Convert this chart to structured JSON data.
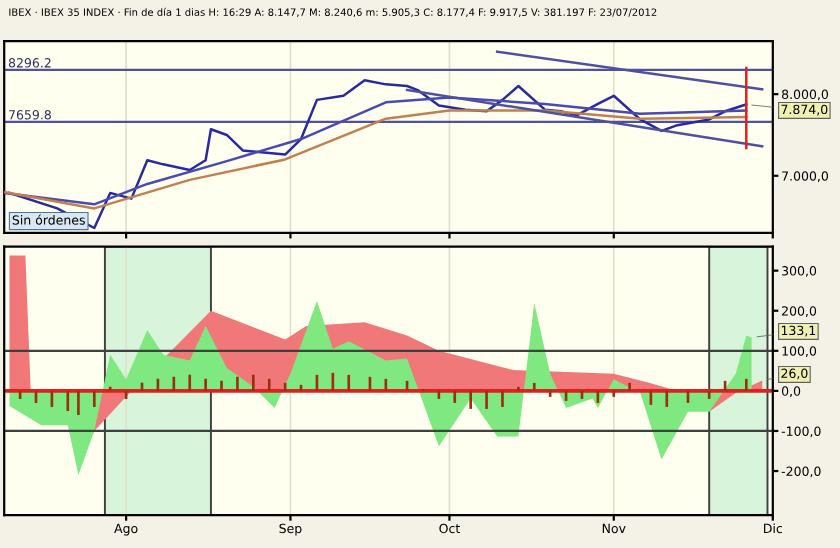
{
  "chart_data": [
    {
      "type": "line",
      "title": "IBEX · IBEX 35 INDEX · Fin de día 1 dias H: 16:29 A: 8.147,7 M: 8.240,6 m: 5.905,3 C: 8.177,4 F: 9.917,5 V: 381.197 F: 23/07/2012",
      "xlim": [
        "2012-07-09",
        "2012-12-01"
      ],
      "ylim": [
        6300,
        8650
      ],
      "xticks": [
        {
          "value": "2012-08-01",
          "label": null
        },
        {
          "value": "2012-09-01",
          "label": null
        },
        {
          "value": "2012-10-01",
          "label": null
        },
        {
          "value": "2012-11-01",
          "label": null
        },
        {
          "value": "2012-12-01",
          "label": null
        }
      ],
      "yticks": [
        {
          "value": 8000,
          "label": "8.000,0"
        },
        {
          "value": 7000,
          "label": "7.000,0"
        }
      ],
      "tick_labels": "y",
      "grid": "x",
      "ref_lines": [
        {
          "axis": "y",
          "value": 8296.2,
          "label": "8296.2",
          "color": "#5050a0"
        },
        {
          "axis": "y",
          "value": 7659.8,
          "label": "7659.8",
          "color": "#5050a0"
        }
      ],
      "annotations": [
        {
          "text": "7.874,0",
          "x": "2012-11-26",
          "y": 7874
        },
        "Sin órdenes"
      ],
      "series": [
        {
          "color": "#2a2aa0",
          "x": [
            "2012-07-10",
            "2012-07-19",
            "2012-07-26",
            "2012-07-29",
            "2012-08-02",
            "2012-08-05",
            "2012-08-08",
            "2012-08-13",
            "2012-08-16",
            "2012-08-17",
            "2012-08-20",
            "2012-08-23",
            "2012-08-26",
            "2012-08-31",
            "2012-09-03",
            "2012-09-06",
            "2012-09-11",
            "2012-09-15",
            "2012-09-19",
            "2012-09-23",
            "2012-09-25",
            "2012-09-29",
            "2012-10-04",
            "2012-10-08",
            "2012-10-11",
            "2012-10-14",
            "2012-10-19",
            "2012-10-22",
            "2012-10-25",
            "2012-10-29",
            "2012-11-01",
            "2012-11-06",
            "2012-11-10",
            "2012-11-13",
            "2012-11-19",
            "2012-11-22",
            "2012-11-26"
          ],
          "values": [
            6790,
            6600,
            6360,
            6790,
            6720,
            7190,
            7140,
            7070,
            7190,
            7570,
            7500,
            7310,
            7290,
            7260,
            7450,
            7930,
            7980,
            8170,
            8120,
            8100,
            8050,
            7860,
            7810,
            7790,
            7930,
            8100,
            7810,
            7790,
            7740,
            7880,
            7980,
            7690,
            7550,
            7620,
            7690,
            7790,
            7874
          ]
        },
        {
          "color": "#4a4ab0",
          "x": [
            "2012-07-09",
            "2012-07-26",
            "2012-08-05",
            "2012-08-20",
            "2012-09-03",
            "2012-09-19",
            "2012-10-01",
            "2012-10-19",
            "2012-11-06",
            "2012-11-26"
          ],
          "values": [
            6790,
            6650,
            6900,
            7180,
            7450,
            7900,
            7960,
            7880,
            7760,
            7800
          ]
        },
        {
          "color": "#c08050",
          "x": [
            "2012-07-09",
            "2012-07-26",
            "2012-08-13",
            "2012-08-31",
            "2012-09-19",
            "2012-10-01",
            "2012-10-19",
            "2012-11-06",
            "2012-11-26"
          ],
          "values": [
            6800,
            6600,
            6950,
            7200,
            7700,
            7800,
            7800,
            7700,
            7720
          ]
        },
        {
          "color": "#5050a0",
          "x": [
            "2012-10-10",
            "2012-11-29"
          ],
          "values": [
            8520,
            8060
          ]
        },
        {
          "color": "#5050a0",
          "x": [
            "2012-09-23",
            "2012-11-29"
          ],
          "values": [
            8050,
            7360
          ]
        },
        {
          "color": "#e02020",
          "x": [
            "2012-11-26",
            "2012-11-26"
          ],
          "values": [
            8320,
            7340
          ]
        }
      ]
    },
    {
      "type": "area",
      "xlim": [
        "2012-07-09",
        "2012-12-01"
      ],
      "ylim": [
        -310,
        360
      ],
      "xticks": [
        {
          "value": "2012-08-01",
          "label": "Ago"
        },
        {
          "value": "2012-09-01",
          "label": "Sep"
        },
        {
          "value": "2012-10-01",
          "label": "Oct"
        },
        {
          "value": "2012-11-01",
          "label": "Nov"
        },
        {
          "value": "2012-12-01",
          "label": "Dic"
        }
      ],
      "yticks": [
        {
          "value": 300,
          "label": "300,0"
        },
        {
          "value": 200,
          "label": "200,0"
        },
        {
          "value": 100,
          "label": "100,0"
        },
        {
          "value": 0,
          "label": "0,0"
        },
        {
          "value": -100,
          "label": "-100,0"
        },
        {
          "value": -200,
          "label": "-200,0"
        }
      ],
      "grid": "x",
      "ref_lines": [
        {
          "axis": "y",
          "value": 100,
          "color": "#404040"
        },
        {
          "axis": "y",
          "value": -100,
          "color": "#404040"
        },
        {
          "axis": "y",
          "value": 0,
          "color": "#e02020"
        }
      ],
      "bands": [
        {
          "axis": "x",
          "from": "2012-07-28",
          "to": "2012-08-17",
          "color": "#d8f5dc"
        },
        {
          "axis": "x",
          "from": "2012-11-19",
          "to": "2012-11-30",
          "color": "#d8f5dc"
        }
      ],
      "annotations": [
        {
          "text": "133,1",
          "x": "2012-11-27",
          "y": 133.1
        },
        {
          "text": "26,0",
          "x": "2012-11-29",
          "y": 26
        }
      ],
      "series": [
        {
          "color": "#f07878",
          "x": [
            "2012-07-10",
            "2012-07-13",
            "2012-07-14",
            "2012-07-19",
            "2012-07-26",
            "2012-08-02",
            "2012-08-17",
            "2012-08-31",
            "2012-09-04",
            "2012-09-15",
            "2012-09-23",
            "2012-09-29",
            "2012-10-13",
            "2012-11-01",
            "2012-11-08",
            "2012-11-13",
            "2012-11-19",
            "2012-11-24",
            "2012-11-29"
          ],
          "values": [
            338,
            338,
            0,
            null,
            -100,
            0,
            200,
            128,
            162,
            171,
            138,
            100,
            52,
            43,
            19,
            0,
            -52,
            -5,
            26
          ]
        },
        {
          "color": "#80e880",
          "x": [
            "2012-07-10",
            "2012-07-16",
            "2012-07-21",
            "2012-07-23",
            "2012-07-26",
            "2012-07-29",
            "2012-08-01",
            "2012-08-05",
            "2012-08-08",
            "2012-08-13",
            "2012-08-16",
            "2012-08-20",
            "2012-08-25",
            "2012-08-29",
            "2012-09-01",
            "2012-09-06",
            "2012-09-09",
            "2012-09-12",
            "2012-09-19",
            "2012-09-23",
            "2012-09-29",
            "2012-10-05",
            "2012-10-10",
            "2012-10-14",
            "2012-10-17",
            "2012-10-20",
            "2012-10-23",
            "2012-10-28",
            "2012-10-29",
            "2012-11-01",
            "2012-11-06",
            "2012-11-10",
            "2012-11-15",
            "2012-11-19",
            "2012-11-24",
            "2012-11-26",
            "2012-11-27"
          ],
          "values": [
            -38,
            -86,
            -86,
            -210,
            -100,
            90,
            29,
            152,
            90,
            76,
            162,
            57,
            10,
            -43,
            43,
            224,
            105,
            124,
            76,
            81,
            -138,
            -19,
            -114,
            -114,
            219,
            43,
            -43,
            -19,
            -43,
            29,
            -5,
            -171,
            -52,
            -52,
            43,
            138,
            133
          ]
        },
        {
          "type": "bar",
          "color": "#9a3010",
          "x": [
            "2012-07-12",
            "2012-07-15",
            "2012-07-18",
            "2012-07-21",
            "2012-07-23",
            "2012-07-26",
            "2012-07-29",
            "2012-08-01",
            "2012-08-04",
            "2012-08-07",
            "2012-08-10",
            "2012-08-13",
            "2012-08-16",
            "2012-08-19",
            "2012-08-22",
            "2012-08-25",
            "2012-08-28",
            "2012-08-31",
            "2012-09-03",
            "2012-09-06",
            "2012-09-09",
            "2012-09-12",
            "2012-09-16",
            "2012-09-19",
            "2012-09-23",
            "2012-09-26",
            "2012-09-29",
            "2012-10-02",
            "2012-10-05",
            "2012-10-08",
            "2012-10-11",
            "2012-10-14",
            "2012-10-17",
            "2012-10-20",
            "2012-10-23",
            "2012-10-26",
            "2012-10-29",
            "2012-11-01",
            "2012-11-04",
            "2012-11-08",
            "2012-11-11",
            "2012-11-15",
            "2012-11-19",
            "2012-11-22",
            "2012-11-26"
          ],
          "values": [
            -20,
            -30,
            -40,
            -50,
            -60,
            -40,
            10,
            -20,
            20,
            30,
            35,
            40,
            30,
            25,
            35,
            40,
            30,
            20,
            15,
            40,
            45,
            40,
            35,
            30,
            25,
            5,
            -20,
            -30,
            -45,
            -45,
            -40,
            10,
            20,
            -15,
            -25,
            -20,
            -30,
            -15,
            20,
            -35,
            -40,
            -30,
            -20,
            25,
            30
          ]
        }
      ]
    }
  ]
}
